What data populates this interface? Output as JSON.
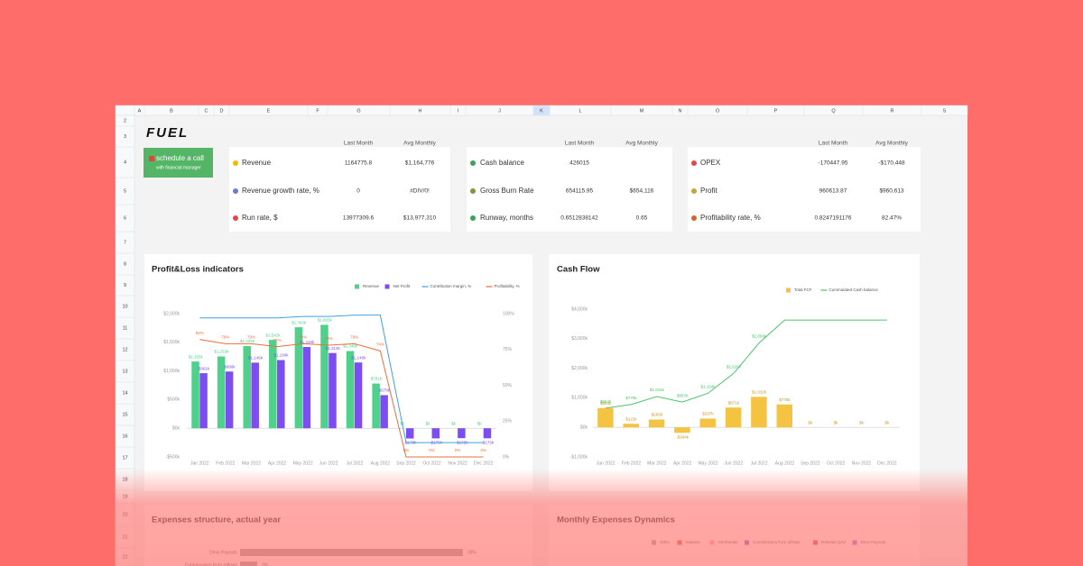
{
  "logo": "FUEL",
  "button": {
    "title": "schedule a call",
    "subtitle": "with financial manager"
  },
  "columns": [
    "A",
    "B",
    "C",
    "D",
    "E",
    "F",
    "G",
    "H",
    "I",
    "J",
    "K",
    "L",
    "M",
    "N",
    "O",
    "P",
    "Q",
    "R",
    "S"
  ],
  "rows": [
    2,
    3,
    4,
    5,
    6,
    7,
    8,
    9,
    10,
    11,
    12,
    13,
    14,
    15,
    16,
    17,
    18,
    19,
    20,
    21,
    22
  ],
  "kpi_cards": [
    {
      "headers": [
        "Last Month",
        "Avg Monthly"
      ],
      "rows": [
        {
          "label": "Revenue",
          "last": "1164775.8",
          "avg": "$1,164,776"
        },
        {
          "label": "Revenue growth rate, %",
          "last": "0",
          "avg": "#DIV/0!"
        },
        {
          "label": "Run rate, $",
          "last": "13977309.6",
          "avg": "$13,977,310"
        }
      ]
    },
    {
      "headers": [
        "Last Month",
        "Avg Monthly"
      ],
      "rows": [
        {
          "label": "Cash balance",
          "last": "426015"
        },
        {
          "label": "Gross Burn Rate",
          "last": "654115.95",
          "avg": "$654,116"
        },
        {
          "label": "Runway, months",
          "last": "0.6512838142",
          "avg": "0.65"
        }
      ]
    },
    {
      "headers": [
        "Last Month",
        "Avg Monthly"
      ],
      "rows": [
        {
          "label": "OPEX",
          "last": "-170447.95",
          "avg": "-$170,448"
        },
        {
          "label": "Profit",
          "last": "960613.87",
          "avg": "$960,613"
        },
        {
          "label": "Profitability rate, %",
          "last": "0.8247191176",
          "avg": "82.47%"
        }
      ]
    }
  ],
  "chart_data": [
    {
      "type": "combo",
      "title": "Profit&Loss indicators",
      "categories": [
        "Jan 2022",
        "Feb 2022",
        "Mar 2022",
        "Apr 2022",
        "May 2022",
        "Jun 2022",
        "Jul 2022",
        "Aug 2022",
        "Sep 2022",
        "Oct 2022",
        "Nov 2022",
        "Dec 2022"
      ],
      "series": [
        {
          "name": "Revenue",
          "type": "bar",
          "color": "#4fd18b",
          "values": [
            1165,
            1253,
            1434,
            1542,
            1763,
            1805,
            1348,
            781,
            0,
            0,
            0,
            0
          ],
          "value_labels": [
            "$1,165k",
            "$1,253k",
            "$1,434k",
            "$1,542k",
            "$1,763k",
            "$1,805k",
            "$1,348k",
            "$781k",
            "$k",
            "$k",
            "$k",
            "$k"
          ]
        },
        {
          "name": "Net Profit",
          "type": "bar",
          "color": "#7d4df2",
          "values": [
            961,
            990,
            1145,
            1190,
            1418,
            1313,
            1148,
            578,
            -178,
            -176,
            -172,
            -175
          ],
          "value_labels": [
            "$961k",
            "$990k",
            "$1,145k",
            "$1,190k",
            "$1,418k",
            "$1,313k",
            "$1,148k",
            "$578k",
            "-$178k",
            "-$176k",
            "-$172k",
            "-$175k"
          ]
        },
        {
          "name": "Contribution margin, %",
          "type": "line",
          "axis": "y2",
          "color": "#3ea2e0",
          "values": [
            97,
            97,
            97,
            97,
            98,
            98,
            99,
            99,
            10,
            10,
            10,
            10
          ]
        },
        {
          "name": "Profitability, %",
          "type": "line",
          "axis": "y2",
          "color": "#e8703a",
          "values": [
            82,
            79,
            79,
            77,
            79,
            78,
            79,
            74,
            0,
            0,
            0,
            0
          ],
          "value_labels": [
            "82%",
            "79%",
            "79%",
            "77%",
            "79%",
            "78%",
            "79%",
            "74%",
            "0%",
            "0%",
            "0%",
            "0%"
          ]
        }
      ],
      "ylim": [
        -500,
        2000
      ],
      "yticks": [
        {
          "value": -500,
          "label": "-$500k"
        },
        {
          "value": 0,
          "label": "$0k"
        },
        {
          "value": 500,
          "label": "$500k"
        },
        {
          "value": 1000,
          "label": "$1,000k"
        },
        {
          "value": 1500,
          "label": "$1,500k"
        },
        {
          "value": 2000,
          "label": "$2,000k"
        }
      ],
      "y2lim": [
        0,
        100
      ],
      "y2ticks": [
        {
          "value": 0,
          "label": "0%"
        },
        {
          "value": 25,
          "label": "25%"
        },
        {
          "value": 50,
          "label": "50%"
        },
        {
          "value": 75,
          "label": "75%"
        },
        {
          "value": 100,
          "label": "100%"
        }
      ],
      "grid": false,
      "legend": "top-right"
    },
    {
      "type": "combo",
      "title": "Cash Flow",
      "categories": [
        "Jan 2022",
        "Feb 2022",
        "Mar 2022",
        "Apr 2022",
        "May 2022",
        "Jun 2022",
        "Jul 2022",
        "Aug 2022",
        "Sep 2022",
        "Oct 2022",
        "Nov 2022",
        "Dec 2022"
      ],
      "series": [
        {
          "name": "Total FCF",
          "type": "bar",
          "color": "#f5c342",
          "values": [
            654,
            122,
            265,
            -184,
            297,
            671,
            1032,
            775,
            0,
            0,
            0,
            0
          ],
          "value_labels": [
            "$654k",
            "$122k",
            "$265k",
            "-$184k",
            "$297k",
            "$671k",
            "$1,032k",
            "$775k",
            "$k",
            "$k",
            "$k",
            "$k"
          ]
        },
        {
          "name": "Cummulated Cash balance",
          "type": "line",
          "color": "#4cc36b",
          "values": [
            654,
            776,
            1041,
            857,
            1154,
            1826,
            2858,
            3632,
            3632,
            3632,
            3632,
            3632
          ],
          "value_labels": [
            "$654k",
            "$776k",
            "$1,041k",
            "$857k",
            "$1,154k",
            "$1,826k",
            "$2,858k",
            null,
            null,
            null,
            null,
            null
          ]
        }
      ],
      "ylim": [
        -1000,
        4000
      ],
      "yticks": [
        {
          "value": -1000,
          "label": "-$1,000k"
        },
        {
          "value": 0,
          "label": "$0k"
        },
        {
          "value": 1000,
          "label": "$1,000k"
        },
        {
          "value": 2000,
          "label": "$2,000k"
        },
        {
          "value": 3000,
          "label": "$3,000k"
        },
        {
          "value": 4000,
          "label": "$4,000k"
        }
      ],
      "grid": false,
      "legend": "top-right"
    },
    {
      "type": "hbar",
      "title": "Expenses structure, actual year",
      "categories": [
        "Devs Payouts",
        "Commissions from Inflows"
      ],
      "values": [
        39,
        3
      ],
      "value_labels": [
        "39%",
        "3%"
      ],
      "color": "#9a9a9a"
    },
    {
      "type": "legend-only",
      "title": "Monthly Expenses Dynamics",
      "series": [
        {
          "name": "Other",
          "color": "#9a9a9a"
        },
        {
          "name": "Salaries",
          "color": "#e05050"
        },
        {
          "name": "Overheads",
          "color": "#f2b0b0"
        },
        {
          "name": "Commissions from Inflows",
          "color": "#8a4fd0"
        },
        {
          "name": "Refunds QAV",
          "color": "#e84040"
        },
        {
          "name": "Devs Payouts",
          "color": "#9b6ae0"
        }
      ]
    }
  ]
}
